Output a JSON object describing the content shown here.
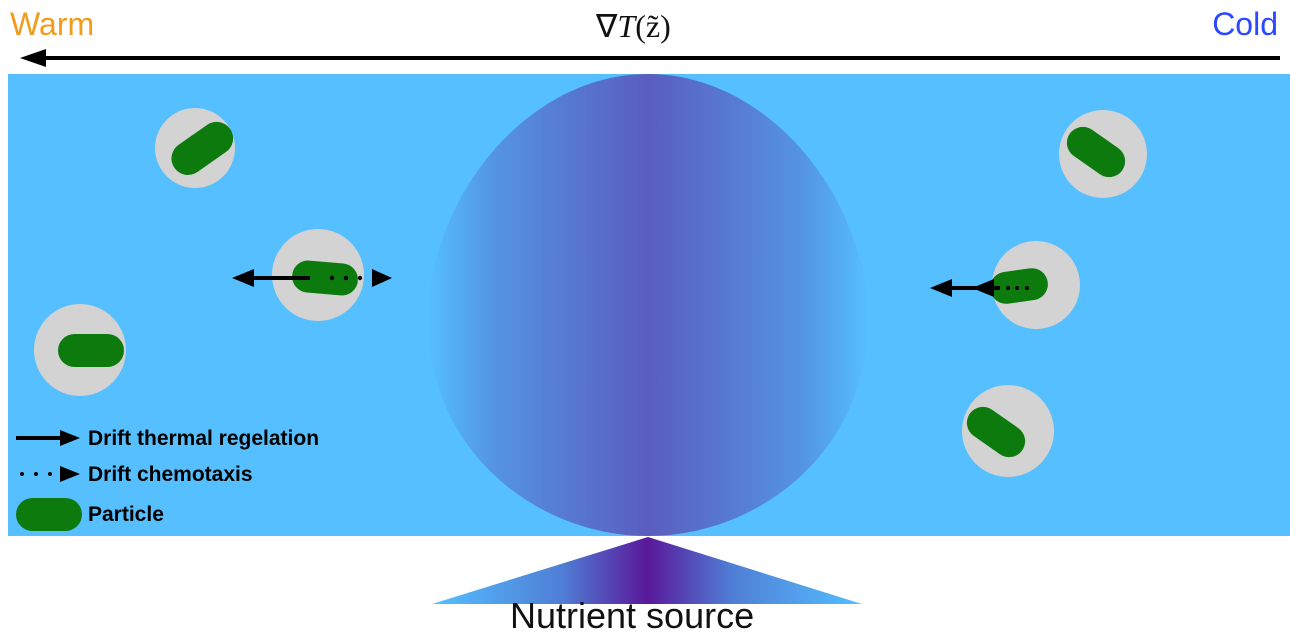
{
  "header": {
    "warm_label": "Warm",
    "cold_label": "Cold",
    "gradient_nabla": "∇",
    "gradient_T": "T",
    "gradient_arg": "(z̃)"
  },
  "legend": {
    "thermal": "Drift thermal regelation",
    "chemotaxis": "Drift chemotaxis",
    "particle": "Particle"
  },
  "source": {
    "label": "Nutrient source"
  },
  "colors": {
    "water": "#55bfff",
    "halo": "#d3d3d3",
    "particle": "#0d7a0d",
    "warm": "#f39b1a",
    "cold": "#2a49ff",
    "plume_center": "#5a5dbf",
    "source_center": "#5a189a"
  }
}
